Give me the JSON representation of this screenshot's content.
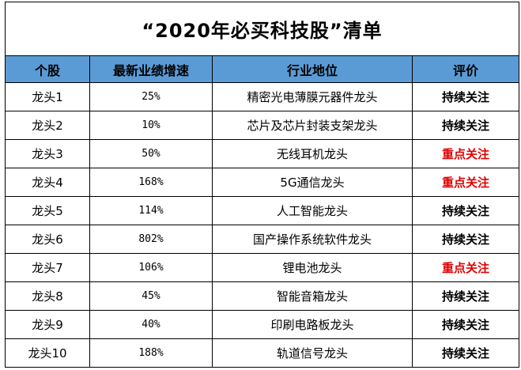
{
  "title": "“2020年必买科技股”清单",
  "columns": [
    "个股",
    "最新业绩增速",
    "行业地位",
    "评价"
  ],
  "colors": {
    "header_bg": "#5b9bd5",
    "highlight": "#e00000",
    "normal": "#000000"
  },
  "rows": [
    {
      "stock": "龙头1",
      "growth": "25%",
      "industry": "精密光电薄膜元器件龙头",
      "rating": "持续关注",
      "highlight": false
    },
    {
      "stock": "龙头2",
      "growth": "10%",
      "industry": "芯片及芯片封装支架龙头",
      "rating": "持续关注",
      "highlight": false
    },
    {
      "stock": "龙头3",
      "growth": "50%",
      "industry": "无线耳机龙头",
      "rating": "重点关注",
      "highlight": true
    },
    {
      "stock": "龙头4",
      "growth": "168%",
      "industry": "5G通信龙头",
      "rating": "重点关注",
      "highlight": true
    },
    {
      "stock": "龙头5",
      "growth": "114%",
      "industry": "人工智能龙头",
      "rating": "持续关注",
      "highlight": false
    },
    {
      "stock": "龙头6",
      "growth": "802%",
      "industry": "国产操作系统软件龙头",
      "rating": "持续关注",
      "highlight": false
    },
    {
      "stock": "龙头7",
      "growth": "106%",
      "industry": "锂电池龙头",
      "rating": "重点关注",
      "highlight": true
    },
    {
      "stock": "龙头8",
      "growth": "45%",
      "industry": "智能音箱龙头",
      "rating": "持续关注",
      "highlight": false
    },
    {
      "stock": "龙头9",
      "growth": "40%",
      "industry": "印刷电路板龙头",
      "rating": "持续关注",
      "highlight": false
    },
    {
      "stock": "龙头10",
      "growth": "188%",
      "industry": "轨道信号龙头",
      "rating": "持续关注",
      "highlight": false
    }
  ]
}
